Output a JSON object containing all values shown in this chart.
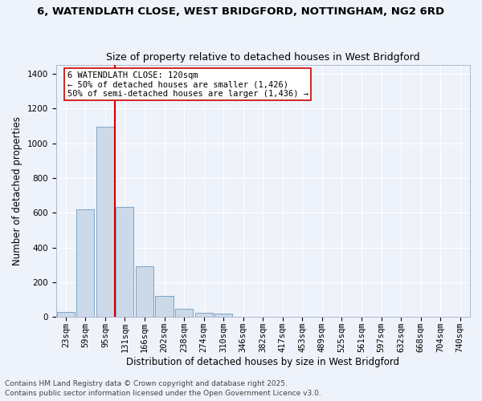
{
  "title_line1": "6, WATENDLATH CLOSE, WEST BRIDGFORD, NOTTINGHAM, NG2 6RD",
  "title_line2": "Size of property relative to detached houses in West Bridgford",
  "xlabel": "Distribution of detached houses by size in West Bridgford",
  "ylabel": "Number of detached properties",
  "categories": [
    "23sqm",
    "59sqm",
    "95sqm",
    "131sqm",
    "166sqm",
    "202sqm",
    "238sqm",
    "274sqm",
    "310sqm",
    "346sqm",
    "382sqm",
    "417sqm",
    "453sqm",
    "489sqm",
    "525sqm",
    "561sqm",
    "597sqm",
    "632sqm",
    "668sqm",
    "704sqm",
    "740sqm"
  ],
  "values": [
    30,
    620,
    1095,
    635,
    290,
    120,
    48,
    25,
    18,
    0,
    0,
    0,
    0,
    0,
    0,
    0,
    0,
    0,
    0,
    0,
    0
  ],
  "bar_color": "#ccd9e8",
  "bar_edge_color": "#6a9bbf",
  "vline_color": "#cc0000",
  "annotation_text": "6 WATENDLATH CLOSE: 120sqm\n← 50% of detached houses are smaller (1,426)\n50% of semi-detached houses are larger (1,436) →",
  "annotation_box_color": "#ffffff",
  "annotation_box_edge": "#cc0000",
  "ylim": [
    0,
    1450
  ],
  "yticks": [
    0,
    200,
    400,
    600,
    800,
    1000,
    1200,
    1400
  ],
  "background_color": "#eef2fa",
  "grid_color": "#ffffff",
  "footer_line1": "Contains HM Land Registry data © Crown copyright and database right 2025.",
  "footer_line2": "Contains public sector information licensed under the Open Government Licence v3.0.",
  "title_fontsize": 9.5,
  "subtitle_fontsize": 9,
  "axis_fontsize": 8.5,
  "tick_fontsize": 7.5,
  "footer_fontsize": 6.5
}
